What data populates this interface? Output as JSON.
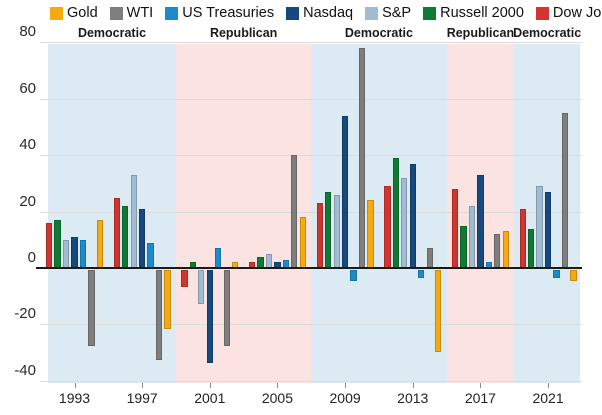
{
  "chart_data": {
    "type": "bar",
    "title": "",
    "xlabel": "",
    "ylabel": "",
    "categories": [
      "1993",
      "1997",
      "2001",
      "2005",
      "2009",
      "2013",
      "2017",
      "2021"
    ],
    "y_ticks": [
      80,
      60,
      40,
      20,
      0,
      -20,
      -40
    ],
    "ylim": [
      -40,
      80
    ],
    "grid": true,
    "legend_position": "top",
    "series": [
      {
        "name": "Gold",
        "color": "#F5AA0F",
        "values": [
          17,
          -21,
          2,
          18,
          24,
          -29,
          13,
          -4
        ]
      },
      {
        "name": "WTI",
        "color": "#7E7E7E",
        "values": [
          -27,
          -32,
          -27,
          40,
          78,
          7,
          12,
          55
        ]
      },
      {
        "name": "US Treasuries",
        "color": "#1D8BCB",
        "values": [
          10,
          9,
          7,
          3,
          -4,
          -3,
          2,
          -3
        ]
      },
      {
        "name": "Nasdaq",
        "color": "#17497C",
        "values": [
          11,
          21,
          -33,
          2,
          54,
          37,
          33,
          27
        ]
      },
      {
        "name": "S&P",
        "color": "#9FBCD2",
        "values": [
          10,
          33,
          -12,
          5,
          26,
          32,
          22,
          29
        ]
      },
      {
        "name": "Russell 2000",
        "color": "#0E7A33",
        "values": [
          17,
          22,
          2,
          4,
          27,
          39,
          15,
          14
        ]
      },
      {
        "name": "Dow Jones",
        "color": "#D13530",
        "values": [
          16,
          25,
          -6,
          2,
          23,
          29,
          28,
          21
        ]
      }
    ],
    "bar_draw_order": [
      6,
      5,
      4,
      3,
      2,
      1,
      0
    ],
    "party_bands": [
      {
        "label": "Democratic",
        "party": "democratic",
        "from_term": 0,
        "to_term": 1
      },
      {
        "label": "Republican",
        "party": "republican",
        "from_term": 2,
        "to_term": 3
      },
      {
        "label": "Democratic",
        "party": "democratic",
        "from_term": 4,
        "to_term": 5
      },
      {
        "label": "Republican",
        "party": "republican",
        "from_term": 6,
        "to_term": 6
      },
      {
        "label": "Democratic",
        "party": "democratic",
        "from_term": 7,
        "to_term": 7
      }
    ],
    "band_colors": {
      "democratic": "#DCEAF3",
      "republican": "#FBE3E2"
    }
  }
}
